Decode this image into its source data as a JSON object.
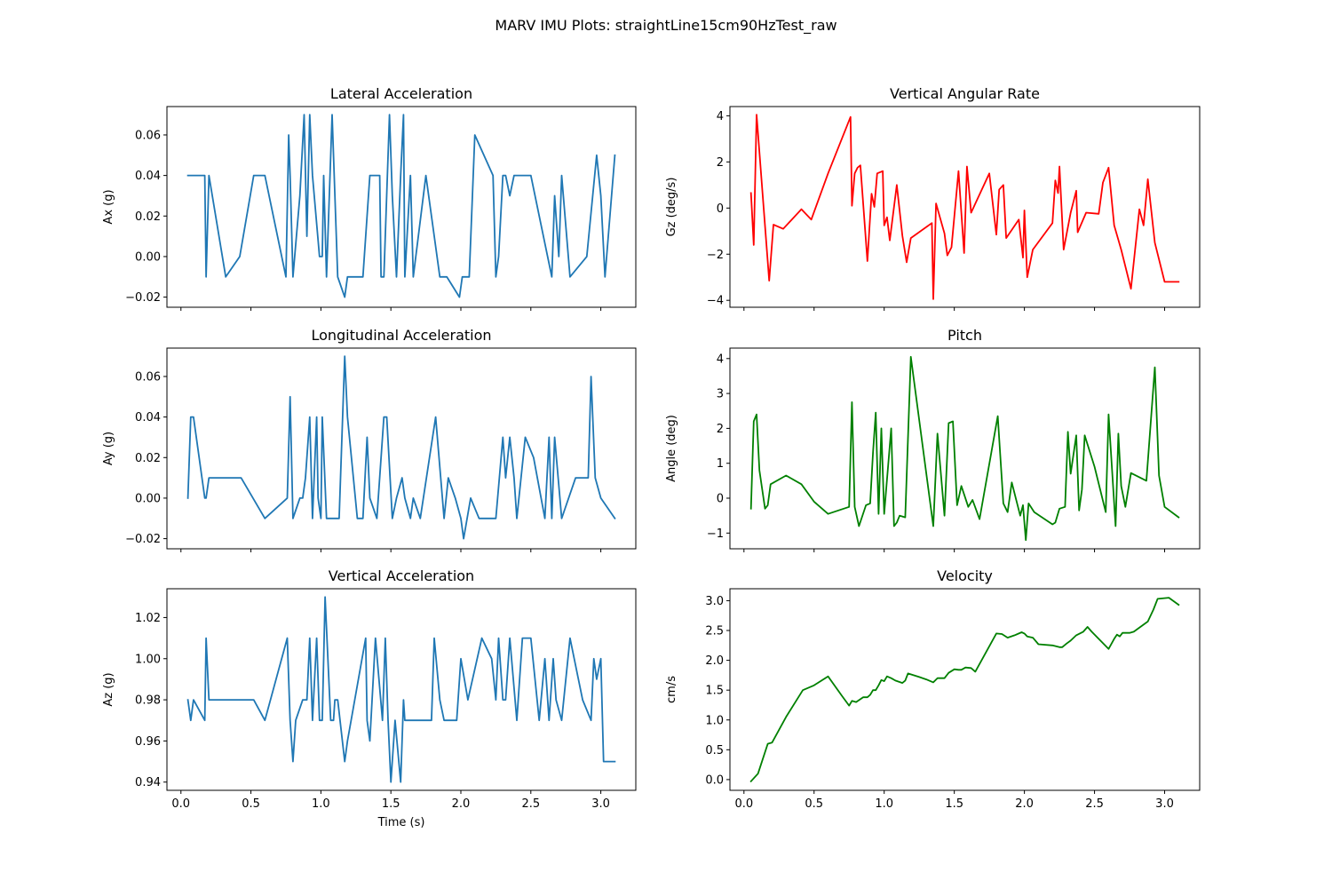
{
  "figure": {
    "title": "MARV IMU Plots: straightLine15cm90HzTest_raw"
  },
  "chart_data": [
    {
      "id": "lateral",
      "type": "line",
      "title": "Lateral Acceleration",
      "xlabel": "",
      "ylabel": "Ax (g)",
      "color": "#1f77b4",
      "xlim": [
        -0.1,
        3.25
      ],
      "ylim": [
        -0.025,
        0.074
      ],
      "xticks": [
        0.0,
        0.5,
        1.0,
        1.5,
        2.0,
        2.5,
        3.0
      ],
      "xticklabels": [],
      "yticks": [
        -0.02,
        0.0,
        0.02,
        0.04,
        0.06
      ],
      "yticklabels": [
        "−0.02",
        "0.00",
        "0.02",
        "0.04",
        "0.06"
      ],
      "x": [
        0.05,
        0.17,
        0.18,
        0.2,
        0.32,
        0.42,
        0.52,
        0.6,
        0.75,
        0.77,
        0.78,
        0.8,
        0.85,
        0.88,
        0.9,
        0.92,
        0.94,
        0.99,
        1.01,
        1.02,
        1.04,
        1.08,
        1.12,
        1.17,
        1.19,
        1.3,
        1.35,
        1.42,
        1.43,
        1.45,
        1.49,
        1.51,
        1.54,
        1.57,
        1.59,
        1.6,
        1.64,
        1.66,
        1.75,
        1.85,
        1.9,
        1.99,
        2.01,
        2.06,
        2.1,
        2.23,
        2.25,
        2.27,
        2.3,
        2.32,
        2.35,
        2.38,
        2.4,
        2.5,
        2.65,
        2.67,
        2.7,
        2.72,
        2.78,
        2.9,
        2.97,
        3.0,
        3.03,
        3.1
      ],
      "y": [
        0.04,
        0.04,
        -0.01,
        0.04,
        -0.01,
        0.0,
        0.04,
        0.04,
        -0.01,
        0.06,
        0.04,
        -0.01,
        0.03,
        0.07,
        0.01,
        0.07,
        0.04,
        0.0,
        0.0,
        0.04,
        -0.01,
        0.07,
        -0.01,
        -0.02,
        -0.01,
        -0.01,
        0.04,
        0.04,
        -0.01,
        -0.01,
        0.07,
        0.03,
        -0.01,
        0.04,
        0.07,
        -0.01,
        0.04,
        -0.01,
        0.04,
        -0.01,
        -0.01,
        -0.02,
        -0.01,
        -0.01,
        0.06,
        0.04,
        -0.01,
        0.0,
        0.04,
        0.04,
        0.03,
        0.04,
        0.04,
        0.04,
        -0.01,
        0.03,
        0.0,
        0.04,
        -0.01,
        0.0,
        0.05,
        0.03,
        -0.01,
        0.05
      ]
    },
    {
      "id": "gz",
      "type": "line",
      "title": "Vertical Angular Rate",
      "xlabel": "",
      "ylabel": "Gz (deg/s)",
      "color": "#ff0000",
      "xlim": [
        -0.1,
        3.25
      ],
      "ylim": [
        -4.3,
        4.4
      ],
      "xticks": [
        0.0,
        0.5,
        1.0,
        1.5,
        2.0,
        2.5,
        3.0
      ],
      "xticklabels": [],
      "yticks": [
        -4,
        -2,
        0,
        2,
        4
      ],
      "yticklabels": [
        "−4",
        "−2",
        "0",
        "2",
        "4"
      ],
      "x": [
        0.05,
        0.07,
        0.09,
        0.18,
        0.21,
        0.28,
        0.41,
        0.48,
        0.6,
        0.76,
        0.77,
        0.79,
        0.81,
        0.83,
        0.88,
        0.91,
        0.93,
        0.95,
        0.99,
        1.0,
        1.02,
        1.04,
        1.09,
        1.13,
        1.16,
        1.19,
        1.34,
        1.35,
        1.37,
        1.43,
        1.45,
        1.48,
        1.53,
        1.57,
        1.59,
        1.62,
        1.75,
        1.8,
        1.82,
        1.85,
        1.87,
        1.96,
        1.99,
        2.0,
        2.02,
        2.06,
        2.2,
        2.22,
        2.24,
        2.25,
        2.28,
        2.33,
        2.37,
        2.38,
        2.44,
        2.53,
        2.56,
        2.6,
        2.64,
        2.69,
        2.76,
        2.82,
        2.85,
        2.88,
        2.93,
        3.0,
        3.1
      ],
      "y": [
        0.65,
        -1.6,
        4.05,
        -3.15,
        -0.72,
        -0.9,
        -0.05,
        -0.5,
        1.5,
        3.95,
        0.1,
        1.5,
        1.75,
        1.85,
        -2.3,
        0.62,
        0.05,
        1.5,
        1.6,
        -0.75,
        -0.4,
        -1.4,
        1.0,
        -1.2,
        -2.35,
        -1.3,
        -0.65,
        -3.95,
        0.2,
        -1.1,
        -2.05,
        -1.7,
        1.6,
        -1.95,
        1.8,
        -0.2,
        1.5,
        -1.15,
        0.8,
        1.0,
        -1.3,
        -0.5,
        -2.15,
        -0.1,
        -3.0,
        -1.8,
        -0.65,
        1.2,
        0.65,
        1.8,
        -1.8,
        -0.2,
        0.75,
        -1.05,
        -0.2,
        -0.25,
        1.1,
        1.75,
        -0.75,
        -1.8,
        -3.5,
        -0.05,
        -0.75,
        1.25,
        -1.5,
        -3.2,
        -3.2
      ]
    },
    {
      "id": "longitudinal",
      "type": "line",
      "title": "Longitudinal Acceleration",
      "xlabel": "",
      "ylabel": "Ay (g)",
      "color": "#1f77b4",
      "xlim": [
        -0.1,
        3.25
      ],
      "ylim": [
        -0.025,
        0.074
      ],
      "xticks": [
        0.0,
        0.5,
        1.0,
        1.5,
        2.0,
        2.5,
        3.0
      ],
      "xticklabels": [],
      "yticks": [
        -0.02,
        0.0,
        0.02,
        0.04,
        0.06
      ],
      "yticklabels": [
        "−0.02",
        "0.00",
        "0.02",
        "0.04",
        "0.06"
      ],
      "x": [
        0.05,
        0.07,
        0.09,
        0.17,
        0.18,
        0.2,
        0.43,
        0.6,
        0.76,
        0.78,
        0.8,
        0.85,
        0.87,
        0.89,
        0.92,
        0.94,
        0.97,
        0.98,
        1.0,
        1.01,
        1.04,
        1.08,
        1.13,
        1.17,
        1.19,
        1.26,
        1.3,
        1.33,
        1.35,
        1.4,
        1.45,
        1.47,
        1.51,
        1.54,
        1.58,
        1.6,
        1.64,
        1.66,
        1.71,
        1.82,
        1.88,
        1.91,
        1.96,
        2.0,
        2.02,
        2.07,
        2.13,
        2.23,
        2.25,
        2.3,
        2.32,
        2.35,
        2.38,
        2.4,
        2.46,
        2.52,
        2.6,
        2.63,
        2.65,
        2.67,
        2.72,
        2.82,
        2.91,
        2.93,
        2.96,
        3.0,
        3.1
      ],
      "y": [
        0.0,
        0.04,
        0.04,
        0.0,
        0.0,
        0.01,
        0.01,
        -0.01,
        0.0,
        0.05,
        -0.01,
        0.0,
        0.0,
        0.01,
        0.04,
        -0.01,
        0.04,
        0.0,
        -0.01,
        0.04,
        -0.01,
        -0.01,
        -0.01,
        0.07,
        0.04,
        -0.01,
        -0.01,
        0.03,
        0.0,
        -0.01,
        0.04,
        0.04,
        -0.01,
        0.0,
        0.01,
        0.0,
        -0.01,
        0.0,
        -0.01,
        0.04,
        -0.01,
        0.01,
        0.0,
        -0.01,
        -0.02,
        0.0,
        -0.01,
        -0.01,
        -0.01,
        0.03,
        0.01,
        0.03,
        0.01,
        -0.01,
        0.03,
        0.02,
        -0.01,
        0.03,
        -0.01,
        0.03,
        -0.01,
        0.01,
        0.01,
        0.06,
        0.01,
        0.0,
        -0.01
      ]
    },
    {
      "id": "pitch",
      "type": "line",
      "title": "Pitch",
      "xlabel": "",
      "ylabel": "Angle (deg)",
      "color": "#008000",
      "xlim": [
        -0.1,
        3.25
      ],
      "ylim": [
        -1.45,
        4.3
      ],
      "xticks": [
        0.0,
        0.5,
        1.0,
        1.5,
        2.0,
        2.5,
        3.0
      ],
      "xticklabels": [],
      "yticks": [
        -1,
        0,
        1,
        2,
        3,
        4
      ],
      "yticklabels": [
        "−1",
        "0",
        "1",
        "2",
        "3",
        "4"
      ],
      "x": [
        0.05,
        0.07,
        0.09,
        0.11,
        0.15,
        0.17,
        0.19,
        0.3,
        0.41,
        0.5,
        0.6,
        0.75,
        0.77,
        0.79,
        0.82,
        0.87,
        0.9,
        0.92,
        0.94,
        0.96,
        0.98,
        1.0,
        1.05,
        1.07,
        1.09,
        1.11,
        1.15,
        1.19,
        1.35,
        1.38,
        1.43,
        1.46,
        1.49,
        1.52,
        1.55,
        1.6,
        1.63,
        1.68,
        1.81,
        1.85,
        1.88,
        1.91,
        1.97,
        1.99,
        2.01,
        2.03,
        2.07,
        2.2,
        2.22,
        2.25,
        2.29,
        2.31,
        2.33,
        2.37,
        2.39,
        2.41,
        2.43,
        2.5,
        2.58,
        2.6,
        2.65,
        2.67,
        2.69,
        2.72,
        2.76,
        2.87,
        2.93,
        2.96,
        3.0,
        3.1
      ],
      "y": [
        -0.3,
        2.2,
        2.4,
        0.8,
        -0.3,
        -0.2,
        0.4,
        0.65,
        0.4,
        -0.1,
        -0.45,
        -0.25,
        2.75,
        -0.25,
        -0.8,
        -0.2,
        -0.15,
        1.3,
        2.45,
        -0.45,
        2.0,
        -0.45,
        2.0,
        -0.8,
        -0.7,
        -0.5,
        -0.55,
        4.05,
        -0.8,
        1.85,
        -0.5,
        2.15,
        2.2,
        -0.2,
        0.35,
        -0.25,
        -0.05,
        -0.6,
        2.35,
        -0.15,
        -0.4,
        0.45,
        -0.5,
        -0.2,
        -1.2,
        -0.15,
        -0.4,
        -0.75,
        -0.7,
        -0.3,
        -0.25,
        1.9,
        0.7,
        1.8,
        -0.35,
        0.25,
        1.8,
        0.9,
        -0.4,
        2.4,
        -0.8,
        1.85,
        0.35,
        -0.25,
        0.72,
        0.5,
        3.75,
        0.65,
        -0.25,
        -0.55
      ]
    },
    {
      "id": "vertical",
      "type": "line",
      "title": "Vertical Acceleration",
      "xlabel": "Time (s)",
      "ylabel": "Az (g)",
      "color": "#1f77b4",
      "xlim": [
        -0.1,
        3.25
      ],
      "ylim": [
        0.936,
        1.034
      ],
      "xticks": [
        0.0,
        0.5,
        1.0,
        1.5,
        2.0,
        2.5,
        3.0
      ],
      "xticklabels": [
        "0.0",
        "0.5",
        "1.0",
        "1.5",
        "2.0",
        "2.5",
        "3.0"
      ],
      "yticks": [
        0.94,
        0.96,
        0.98,
        1.0,
        1.02
      ],
      "yticklabels": [
        "0.94",
        "0.96",
        "0.98",
        "1.00",
        "1.02"
      ],
      "x": [
        0.05,
        0.07,
        0.09,
        0.17,
        0.18,
        0.2,
        0.52,
        0.6,
        0.76,
        0.78,
        0.8,
        0.82,
        0.87,
        0.9,
        0.92,
        0.94,
        0.97,
        0.99,
        1.01,
        1.03,
        1.07,
        1.09,
        1.1,
        1.12,
        1.17,
        1.19,
        1.32,
        1.33,
        1.35,
        1.39,
        1.44,
        1.46,
        1.48,
        1.5,
        1.53,
        1.57,
        1.59,
        1.6,
        1.62,
        1.68,
        1.79,
        1.81,
        1.85,
        1.88,
        1.92,
        1.97,
        2.0,
        2.05,
        2.15,
        2.22,
        2.25,
        2.27,
        2.3,
        2.32,
        2.35,
        2.4,
        2.44,
        2.5,
        2.56,
        2.6,
        2.63,
        2.66,
        2.68,
        2.72,
        2.78,
        2.87,
        2.93,
        2.95,
        2.97,
        3.0,
        3.02,
        3.1
      ],
      "y": [
        0.98,
        0.97,
        0.98,
        0.97,
        1.01,
        0.98,
        0.98,
        0.97,
        1.01,
        0.97,
        0.95,
        0.97,
        0.98,
        0.98,
        1.01,
        0.97,
        1.01,
        0.97,
        0.97,
        1.03,
        0.97,
        0.97,
        0.98,
        0.98,
        0.95,
        0.96,
        1.01,
        0.97,
        0.96,
        1.01,
        0.97,
        1.01,
        0.97,
        0.94,
        0.97,
        0.94,
        0.98,
        0.97,
        0.97,
        0.97,
        0.97,
        1.01,
        0.98,
        0.97,
        0.97,
        0.97,
        1.0,
        0.98,
        1.01,
        1.0,
        0.98,
        1.01,
        0.98,
        0.98,
        1.01,
        0.97,
        1.01,
        1.01,
        0.97,
        1.0,
        0.97,
        1.0,
        0.98,
        0.97,
        1.01,
        0.98,
        0.97,
        1.0,
        0.99,
        1.0,
        0.95,
        0.95
      ]
    },
    {
      "id": "velocity",
      "type": "line",
      "title": "Velocity",
      "xlabel": "",
      "ylabel": "cm/s",
      "color": "#008000",
      "xlim": [
        -0.1,
        3.25
      ],
      "ylim": [
        -0.18,
        3.2
      ],
      "xticks": [
        0.0,
        0.5,
        1.0,
        1.5,
        2.0,
        2.5,
        3.0
      ],
      "xticklabels": [
        "0.0",
        "0.5",
        "1.0",
        "1.5",
        "2.0",
        "2.5",
        "3.0"
      ],
      "yticks": [
        0.0,
        0.5,
        1.0,
        1.5,
        2.0,
        2.5,
        3.0
      ],
      "yticklabels": [
        "0.0",
        "0.5",
        "1.0",
        "1.5",
        "2.0",
        "2.5",
        "3.0"
      ],
      "x": [
        0.05,
        0.1,
        0.17,
        0.2,
        0.3,
        0.42,
        0.5,
        0.6,
        0.7,
        0.75,
        0.77,
        0.8,
        0.85,
        0.88,
        0.9,
        0.92,
        0.94,
        0.96,
        0.98,
        1.0,
        1.02,
        1.05,
        1.08,
        1.13,
        1.15,
        1.17,
        1.25,
        1.3,
        1.35,
        1.38,
        1.43,
        1.46,
        1.5,
        1.53,
        1.55,
        1.58,
        1.62,
        1.65,
        1.8,
        1.84,
        1.88,
        1.93,
        1.98,
        2.0,
        2.02,
        2.06,
        2.1,
        2.2,
        2.25,
        2.27,
        2.3,
        2.33,
        2.37,
        2.42,
        2.45,
        2.48,
        2.6,
        2.64,
        2.66,
        2.68,
        2.7,
        2.75,
        2.78,
        2.88,
        2.92,
        2.95,
        3.03,
        3.1
      ],
      "y": [
        -0.03,
        0.1,
        0.6,
        0.62,
        1.05,
        1.5,
        1.58,
        1.73,
        1.4,
        1.24,
        1.32,
        1.3,
        1.38,
        1.38,
        1.42,
        1.5,
        1.5,
        1.58,
        1.67,
        1.65,
        1.73,
        1.7,
        1.66,
        1.62,
        1.66,
        1.78,
        1.72,
        1.68,
        1.63,
        1.7,
        1.7,
        1.79,
        1.85,
        1.84,
        1.84,
        1.88,
        1.87,
        1.81,
        2.45,
        2.44,
        2.38,
        2.42,
        2.47,
        2.45,
        2.4,
        2.38,
        2.27,
        2.25,
        2.22,
        2.22,
        2.28,
        2.33,
        2.42,
        2.48,
        2.56,
        2.48,
        2.19,
        2.36,
        2.43,
        2.4,
        2.46,
        2.46,
        2.48,
        2.65,
        2.85,
        3.03,
        3.05,
        2.93
      ]
    }
  ]
}
